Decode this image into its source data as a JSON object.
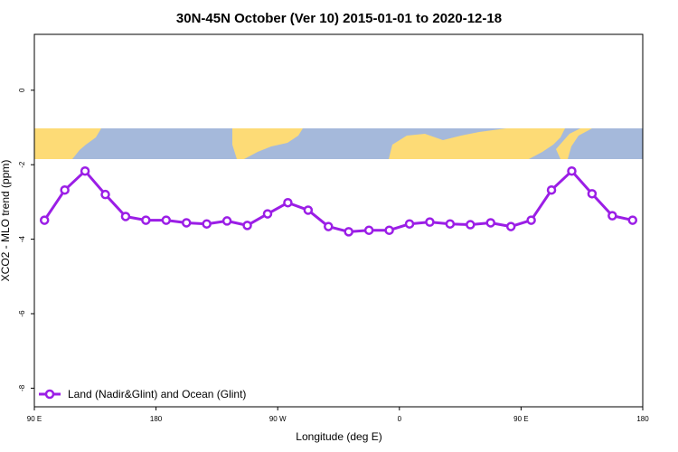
{
  "chart_data": {
    "type": "line",
    "title": "30N-45N October (Ver 10)   2015-01-01 to 2020-12-18",
    "x_label": "Longitude (deg E)",
    "y_label": "XCO2 - MLO trend (ppm)",
    "x": [
      97.5,
      112.5,
      127.5,
      142.5,
      157.5,
      172.5,
      187.5,
      202.5,
      217.5,
      232.5,
      247.5,
      262.5,
      277.5,
      292.5,
      307.5,
      322.5,
      337.5,
      352.5,
      367.5,
      382.5,
      397.5,
      412.5,
      427.5,
      442.5,
      457.5,
      472.5,
      487.5,
      502.5,
      517.5,
      532.5
    ],
    "series": [
      {
        "name": "Land (Nadir&Glint) and Ocean (Glint)",
        "color": "#9b1ee6",
        "values": [
          -3.49,
          -2.68,
          -2.17,
          -2.8,
          -3.39,
          -3.49,
          -3.49,
          -3.56,
          -3.59,
          -3.51,
          -3.63,
          -3.32,
          -3.02,
          -3.22,
          -3.66,
          -3.8,
          -3.76,
          -3.76,
          -3.59,
          -3.54,
          -3.59,
          -3.61,
          -3.56,
          -3.66,
          -3.49,
          -2.68,
          -2.17,
          -2.78,
          -3.37,
          -3.49
        ]
      }
    ],
    "xlim": [
      90,
      540
    ],
    "xticks": [
      {
        "value": 90,
        "label": "90 E"
      },
      {
        "value": 180,
        "label": "180"
      },
      {
        "value": 270,
        "label": "90 W"
      },
      {
        "value": 360,
        "label": "0"
      },
      {
        "value": 450,
        "label": "90 E"
      },
      {
        "value": 540,
        "label": "180"
      }
    ],
    "ylim": [
      -8.5,
      1.5
    ],
    "yticks": [
      0,
      -2,
      -4,
      -6,
      -8
    ],
    "grid": false,
    "legend": "bottom-left"
  }
}
